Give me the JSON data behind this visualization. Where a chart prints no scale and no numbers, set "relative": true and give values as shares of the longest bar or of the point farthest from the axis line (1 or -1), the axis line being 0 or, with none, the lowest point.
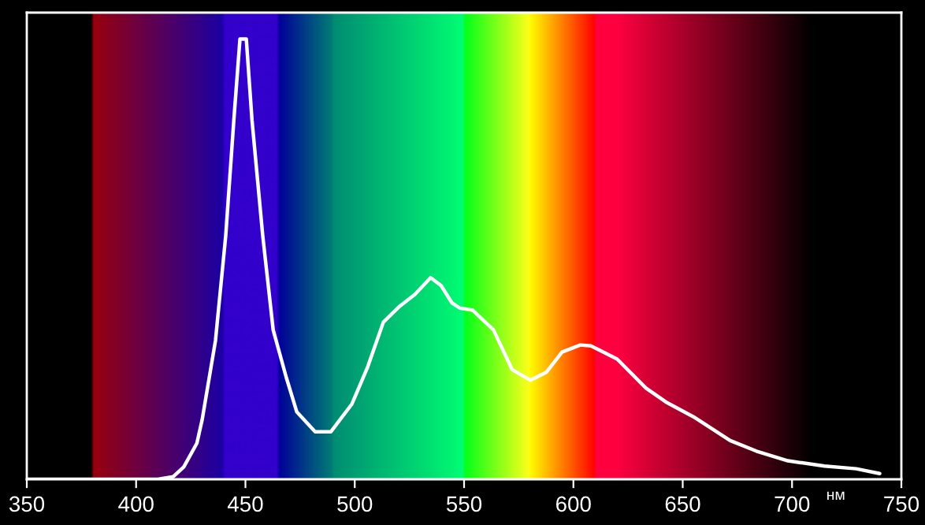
{
  "chart_data": {
    "type": "line",
    "relative": true,
    "xlabel": "нм",
    "x": [
      350,
      410,
      417,
      421.8,
      427.8,
      430.2,
      436.3,
      441,
      444.7,
      447.5,
      450.4,
      453,
      457.9,
      462.7,
      468.7,
      473.5,
      481.9,
      489.1,
      498.7,
      505.9,
      513.1,
      520.3,
      527.5,
      534.7,
      539.5,
      544.4,
      548,
      554,
      563.5,
      572,
      580.4,
      587.6,
      594.8,
      603.2,
      608,
      620,
      633.2,
      642.8,
      654.9,
      671.7,
      683.7,
      698.1,
      714.9,
      729.3,
      740.1
    ],
    "series": [
      {
        "color": "#ffffff",
        "values": [
          0,
          0,
          0.006,
          0.028,
          0.082,
          0.135,
          0.315,
          0.554,
          0.816,
          1.0,
          1.0,
          0.816,
          0.554,
          0.339,
          0.231,
          0.153,
          0.108,
          0.108,
          0.171,
          0.255,
          0.357,
          0.392,
          0.42,
          0.458,
          0.44,
          0.401,
          0.389,
          0.384,
          0.339,
          0.249,
          0.225,
          0.243,
          0.289,
          0.305,
          0.303,
          0.273,
          0.207,
          0.174,
          0.142,
          0.088,
          0.064,
          0.042,
          0.03,
          0.024,
          0.013
        ]
      }
    ],
    "xlim": [
      350,
      750
    ],
    "xticks": [
      350,
      400,
      450,
      500,
      550,
      600,
      650,
      700,
      750
    ],
    "grid": false,
    "legend": false,
    "marker": "none",
    "line_style": "solid"
  }
}
